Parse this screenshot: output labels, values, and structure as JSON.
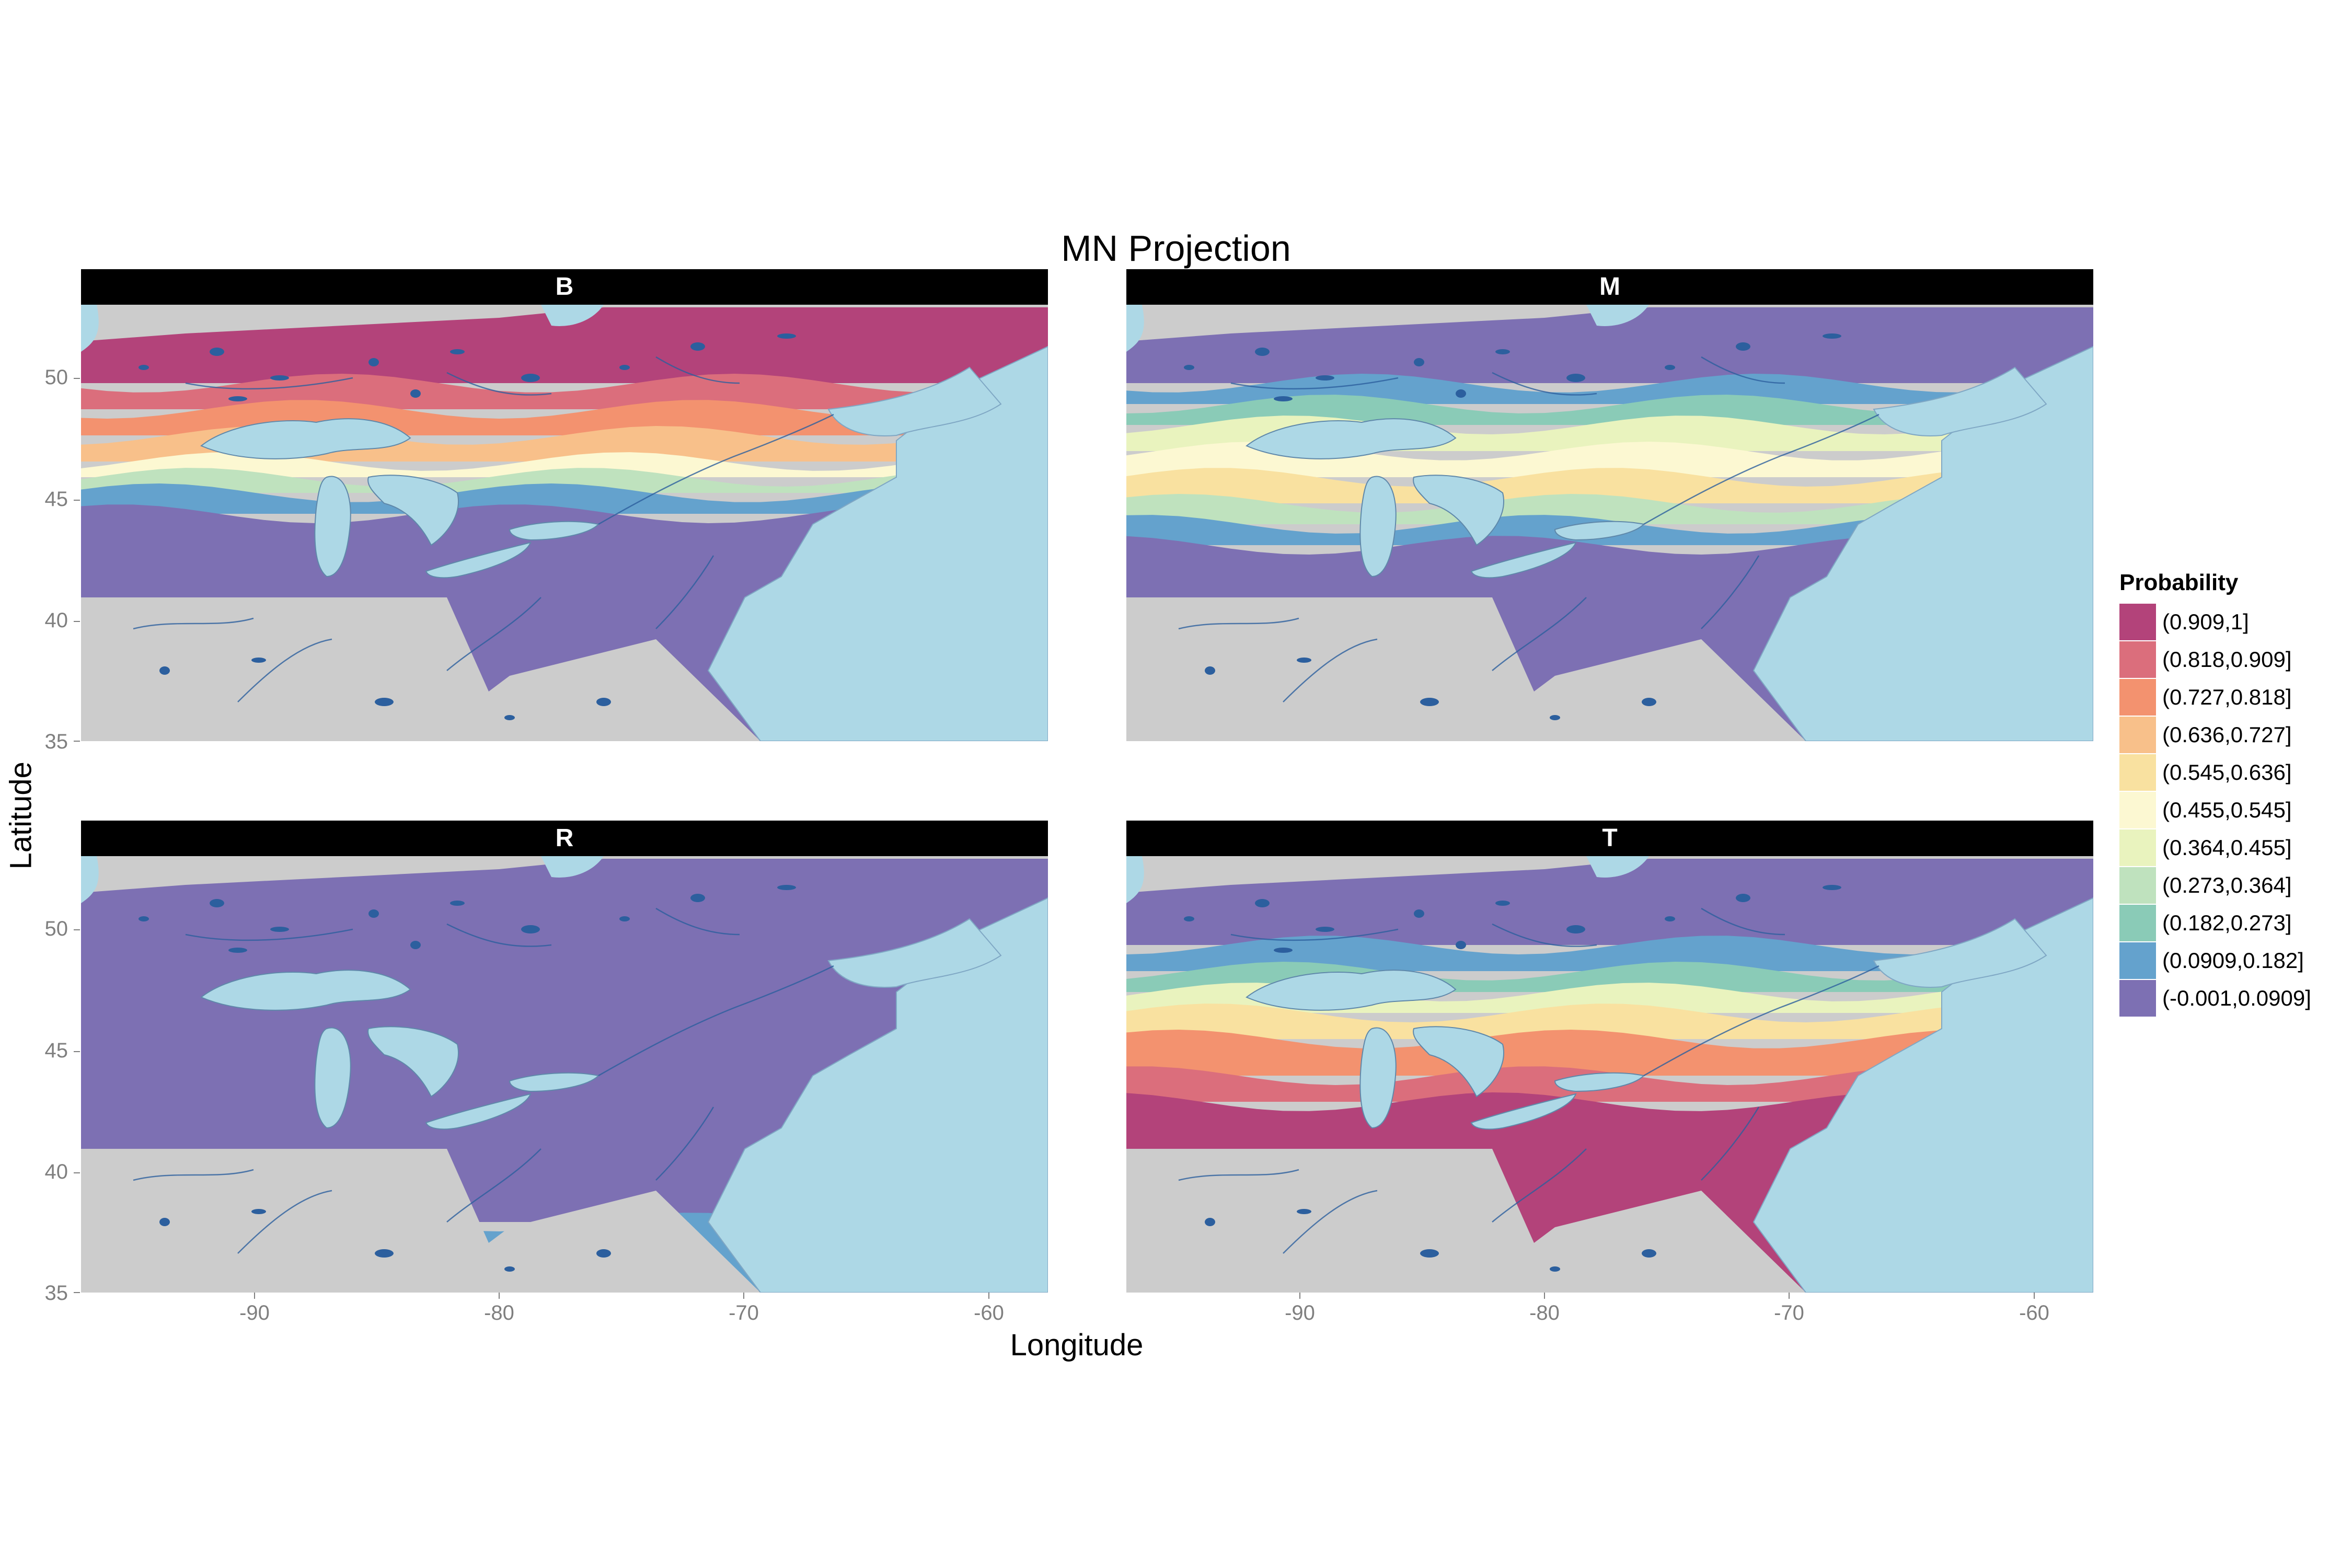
{
  "title": "MN Projection",
  "axes": {
    "xlabel": "Longitude",
    "ylabel": "Latitude",
    "x_ticks": [
      "-90",
      "-80",
      "-70",
      "-60"
    ],
    "y_ticks": [
      "50",
      "45",
      "40",
      "35"
    ]
  },
  "map": {
    "type": "faceted raster probability map",
    "region": "Northeastern North America (Great Lakes, St. Lawrence, Maritimes)",
    "longitude_range": [
      -97,
      -57.5
    ],
    "latitude_range": [
      35,
      53
    ],
    "land_color": "#cccccc",
    "water_color": "#add8e6",
    "river_color": "#2c5f9e"
  },
  "panels": [
    {
      "label": "B",
      "pattern": "high probability in north, decreasing southward"
    },
    {
      "label": "M",
      "pattern": "moderate probability in a central east-west band"
    },
    {
      "label": "R",
      "pattern": "low probability almost everywhere, slight rise in far east"
    },
    {
      "label": "T",
      "pattern": "high probability in south, decreasing northward"
    }
  ],
  "legend": {
    "title": "Probability",
    "entries": [
      {
        "label": "(0.909,1]",
        "color": "#b3437a"
      },
      {
        "label": "(0.818,0.909]",
        "color": "#db6e7c"
      },
      {
        "label": "(0.727,0.818]",
        "color": "#f3926f"
      },
      {
        "label": "(0.636,0.727]",
        "color": "#f8c08a"
      },
      {
        "label": "(0.545,0.636]",
        "color": "#f9e1a0"
      },
      {
        "label": "(0.455,0.545]",
        "color": "#fcf8d2"
      },
      {
        "label": "(0.364,0.455]",
        "color": "#e9f3be"
      },
      {
        "label": "(0.273,0.364]",
        "color": "#bfe2be"
      },
      {
        "label": "(0.182,0.273]",
        "color": "#8acbb7"
      },
      {
        "label": "(0.0909,0.182]",
        "color": "#64a2cd"
      },
      {
        "label": "(-0.001,0.0909]",
        "color": "#7d70b3"
      }
    ]
  }
}
